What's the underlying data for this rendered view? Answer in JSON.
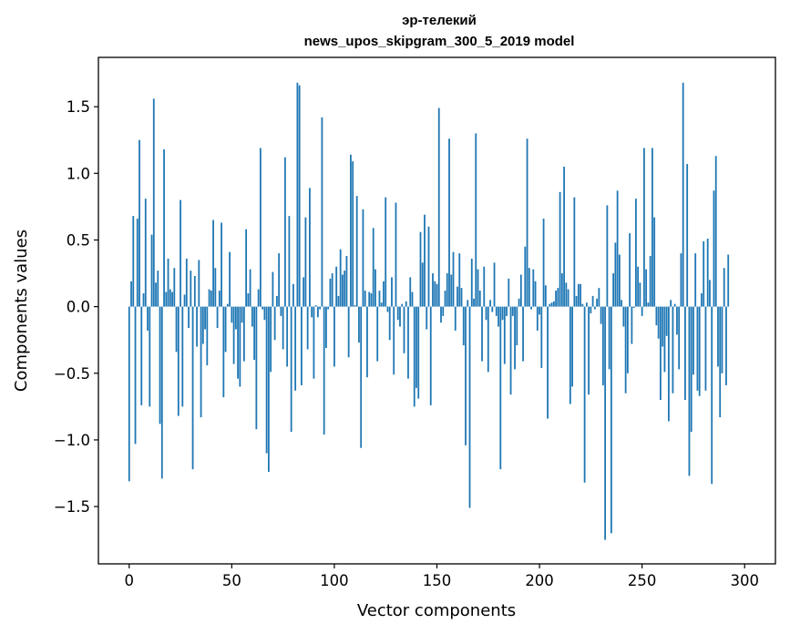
{
  "chart_data": {
    "type": "bar",
    "title": "эр-телекий",
    "subtitle": "news_upos_skipgram_300_5_2019 model",
    "xlabel": "Vector components",
    "ylabel": "Components values",
    "xlim": [
      -15,
      315
    ],
    "ylim": [
      -1.93,
      1.87
    ],
    "xticks": [
      0,
      50,
      100,
      150,
      200,
      250,
      300
    ],
    "yticks": [
      -1.5,
      -1.0,
      -0.5,
      0.0,
      0.5,
      1.0,
      1.5
    ],
    "ytick_labels": [
      "−1.5",
      "−1.0",
      "−0.5",
      "0.0",
      "0.5",
      "1.0",
      "1.5"
    ],
    "bar_color": "#1f77b4",
    "grid": false,
    "values": [
      -1.31,
      0.19,
      0.68,
      -1.03,
      0.66,
      1.25,
      -0.74,
      0.1,
      0.81,
      -0.18,
      -0.75,
      0.54,
      1.56,
      0.18,
      0.27,
      -0.88,
      -1.29,
      1.18,
      0.11,
      0.36,
      0.13,
      0.11,
      0.29,
      -0.34,
      -0.82,
      0.8,
      -0.75,
      0.09,
      0.36,
      -0.16,
      0.27,
      -1.22,
      0.23,
      -0.3,
      0.35,
      -0.83,
      -0.28,
      -0.17,
      -0.44,
      0.13,
      0.12,
      0.65,
      0.29,
      -0.16,
      0.12,
      0.63,
      -0.68,
      -0.34,
      0.02,
      0.41,
      -0.12,
      -0.43,
      -0.17,
      -0.54,
      -0.6,
      -0.12,
      -0.41,
      0.58,
      0.1,
      0.28,
      -0.15,
      -0.4,
      -0.92,
      0.13,
      1.19,
      -0.02,
      -0.1,
      -1.1,
      -1.24,
      -0.49,
      0.26,
      -0.25,
      0.08,
      0.4,
      -0.07,
      -0.32,
      1.12,
      -0.45,
      0.68,
      -0.94,
      0.17,
      -0.63,
      1.68,
      1.66,
      -0.59,
      0.22,
      0.67,
      -0.32,
      0.89,
      -0.08,
      -0.54,
      0.01,
      -0.08,
      -0.02,
      1.42,
      -0.96,
      -0.31,
      -0.02,
      0.21,
      0.25,
      -0.45,
      0.3,
      0.08,
      0.43,
      0.24,
      0.27,
      0.38,
      -0.38,
      1.14,
      1.09,
      0.01,
      0.83,
      -0.27,
      -1.06,
      0.73,
      0.12,
      -0.53,
      0.11,
      0.1,
      0.59,
      0.28,
      -0.41,
      0.12,
      0.03,
      0.19,
      0.82,
      -0.04,
      -0.25,
      0.22,
      -0.51,
      0.78,
      -0.1,
      -0.15,
      0.02,
      -0.35,
      0.04,
      -0.54,
      0.22,
      0.11,
      -0.75,
      -0.61,
      -0.69,
      0.56,
      0.33,
      0.69,
      -0.17,
      0.6,
      -0.74,
      0.25,
      0.19,
      0.17,
      1.49,
      -0.12,
      -0.07,
      0.12,
      0.25,
      1.26,
      0.24,
      0.41,
      -0.18,
      0.15,
      0.4,
      0.14,
      -0.29,
      -1.04,
      0.05,
      -1.51,
      0.36,
      0.06,
      1.3,
      0.28,
      0.12,
      -0.41,
      0.3,
      -0.1,
      -0.49,
      0.05,
      -0.04,
      0.33,
      -0.07,
      -0.15,
      -1.22,
      -0.1,
      -0.43,
      -0.07,
      0.21,
      -0.66,
      -0.07,
      -0.47,
      -0.29,
      0.06,
      0.24,
      -0.41,
      0.45,
      1.26,
      0.29,
      -0.02,
      0.28,
      0.19,
      -0.18,
      -0.06,
      -0.46,
      0.66,
      0.16,
      -0.84,
      0.02,
      0.03,
      0.04,
      0.12,
      0.14,
      0.86,
      0.25,
      1.05,
      0.18,
      0.13,
      -0.73,
      -0.6,
      0.82,
      0.08,
      0.17,
      0.17,
      0.02,
      -1.32,
      0.03,
      -0.66,
      -0.05,
      0.08,
      -0.02,
      0.06,
      0.14,
      -0.13,
      -0.59,
      -1.75,
      0.76,
      -0.47,
      -1.7,
      0.25,
      0.48,
      0.87,
      0.39,
      0.05,
      -0.15,
      -0.65,
      -0.5,
      0.55,
      -0.28,
      -0.01,
      0.81,
      0.3,
      0.18,
      -0.07,
      1.19,
      0.28,
      0.03,
      0.38,
      1.19,
      0.67,
      -0.14,
      -0.24,
      -0.7,
      -0.3,
      -0.49,
      -0.22,
      -0.86,
      0.05,
      -0.65,
      0.02,
      -0.21,
      -0.47,
      0.4,
      1.68,
      -0.7,
      1.07,
      -1.27,
      -0.94,
      -0.51,
      0.4,
      -0.63,
      -0.67,
      0.1,
      0.49,
      -0.63,
      0.51,
      0.2,
      -1.33,
      0.87,
      1.13,
      -0.45,
      -0.83,
      -0.5,
      0.29,
      -0.59,
      0.39
    ]
  }
}
